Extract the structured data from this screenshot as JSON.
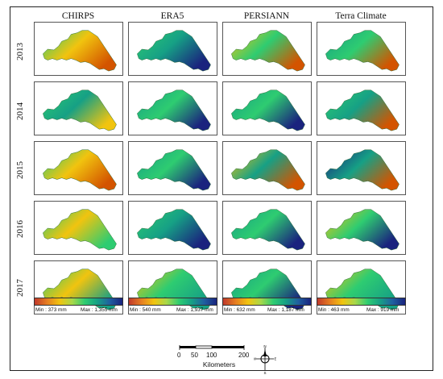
{
  "columns": [
    "CHIRPS",
    "ERA5",
    "PERSIANN",
    "Terra Climate"
  ],
  "rows": [
    "2013",
    "2014",
    "2015",
    "2016",
    "2017"
  ],
  "colorbars": [
    {
      "min_label": "Min : 373 mm",
      "max_label": "Max : 1,355 mm",
      "colors": [
        "#c0392b",
        "#e67e22",
        "#f1c40f",
        "#a8d84a",
        "#2ecc71",
        "#16a085",
        "#1f5fa0",
        "#1a237e"
      ]
    },
    {
      "min_label": "Min : 540 mm",
      "max_label": "Max : 1,937 mm",
      "colors": [
        "#c0392b",
        "#e67e22",
        "#f1c40f",
        "#a8d84a",
        "#2ecc71",
        "#16a085",
        "#1f5fa0",
        "#1a237e"
      ]
    },
    {
      "min_label": "Min : 632 mm",
      "max_label": "Max : 1,187 mm",
      "colors": [
        "#c0392b",
        "#e67e22",
        "#f1c40f",
        "#a8d84a",
        "#2ecc71",
        "#16a085",
        "#1f5fa0",
        "#1a237e"
      ]
    },
    {
      "min_label": "Min : 463 mm",
      "max_label": "Max : 919 mm",
      "colors": [
        "#c0392b",
        "#e67e22",
        "#f1c40f",
        "#a8d84a",
        "#2ecc71",
        "#16a085",
        "#1f5fa0",
        "#1a237e"
      ]
    }
  ],
  "scale": {
    "ticks": [
      "0",
      "50",
      "100",
      "200"
    ],
    "unit": "Kilometers"
  },
  "compass": {
    "n": "N",
    "s": "S",
    "e": "E",
    "w": "W"
  },
  "palette": {
    "low": "#d35400",
    "mid": "#f1c40f",
    "green": "#2ecc71",
    "teal": "#16a085",
    "high": "#1a237e"
  }
}
